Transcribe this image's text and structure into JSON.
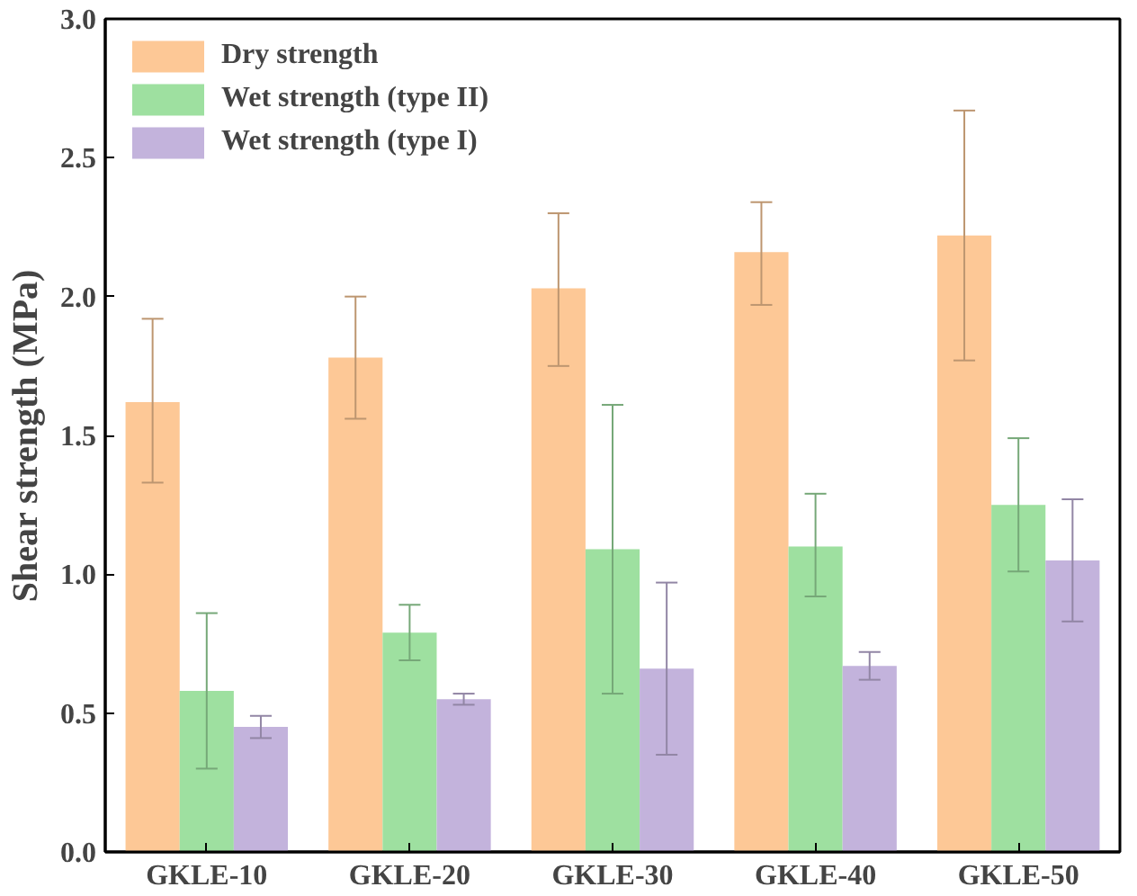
{
  "chart_data": {
    "type": "bar",
    "ylabel": "Shear strength (MPa)",
    "categories": [
      "GKLE-10",
      "GKLE-20",
      "GKLE-30",
      "GKLE-40",
      "GKLE-50"
    ],
    "ylim": [
      0,
      3.0
    ],
    "yticks": [
      {
        "value": 0,
        "label": "0.0"
      },
      {
        "value": 0.5,
        "label": "0.5"
      },
      {
        "value": 1,
        "label": "1.0"
      },
      {
        "value": 1.5,
        "label": "1.5"
      },
      {
        "value": 2,
        "label": "2.0"
      },
      {
        "value": 2.5,
        "label": "2.5"
      },
      {
        "value": 3,
        "label": "3.0"
      }
    ],
    "legend": "top left",
    "grid": false,
    "series": [
      {
        "name": "Dry strength",
        "color": "#fdc896",
        "values": [
          1.62,
          1.78,
          2.03,
          2.16,
          2.22
        ],
        "errors": [
          [
            1.33,
            1.92
          ],
          [
            1.56,
            2.0
          ],
          [
            1.75,
            2.3
          ],
          [
            1.97,
            2.34
          ],
          [
            1.77,
            2.67
          ]
        ]
      },
      {
        "name": "Wet strength (type II)",
        "color": "#9ee0a0",
        "values": [
          0.58,
          0.79,
          1.09,
          1.1,
          1.25
        ],
        "errors": [
          [
            0.3,
            0.86
          ],
          [
            0.69,
            0.89
          ],
          [
            0.57,
            1.61
          ],
          [
            0.92,
            1.29
          ],
          [
            1.01,
            1.49
          ]
        ]
      },
      {
        "name": "Wet strength (type I)",
        "color": "#c3b3dc",
        "values": [
          0.45,
          0.55,
          0.66,
          0.67,
          1.05
        ],
        "errors": [
          [
            0.41,
            0.49
          ],
          [
            0.53,
            0.57
          ],
          [
            0.35,
            0.97
          ],
          [
            0.62,
            0.72
          ],
          [
            0.83,
            1.27
          ]
        ]
      }
    ]
  }
}
